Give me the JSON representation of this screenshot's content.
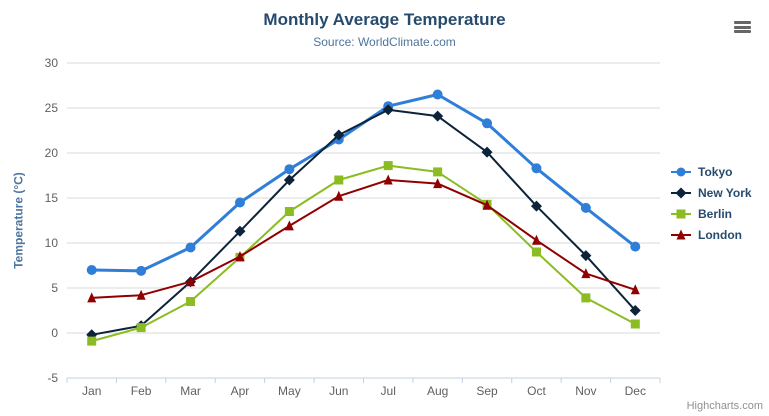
{
  "chart_data": {
    "type": "line",
    "title": "Monthly Average Temperature",
    "subtitle": "Source: WorldClimate.com",
    "xlabel": "",
    "ylabel": "Temperature (°C)",
    "categories": [
      "Jan",
      "Feb",
      "Mar",
      "Apr",
      "May",
      "Jun",
      "Jul",
      "Aug",
      "Sep",
      "Oct",
      "Nov",
      "Dec"
    ],
    "ylim": [
      -5,
      30
    ],
    "yticks": [
      -5,
      0,
      5,
      10,
      15,
      20,
      25,
      30
    ],
    "grid": true,
    "legend_position": "right",
    "series": [
      {
        "name": "Tokyo",
        "color": "#2f7ed8",
        "marker": "circle",
        "highlighted": true,
        "values": [
          7.0,
          6.9,
          9.5,
          14.5,
          18.2,
          21.5,
          25.2,
          26.5,
          23.3,
          18.3,
          13.9,
          9.6
        ]
      },
      {
        "name": "New York",
        "color": "#0d233a",
        "marker": "diamond",
        "highlighted": false,
        "values": [
          -0.2,
          0.8,
          5.7,
          11.3,
          17.0,
          22.0,
          24.8,
          24.1,
          20.1,
          14.1,
          8.6,
          2.5
        ]
      },
      {
        "name": "Berlin",
        "color": "#8bbc21",
        "marker": "square",
        "highlighted": false,
        "values": [
          -0.9,
          0.6,
          3.5,
          8.4,
          13.5,
          17.0,
          18.6,
          17.9,
          14.3,
          9.0,
          3.9,
          1.0
        ]
      },
      {
        "name": "London",
        "color": "#910000",
        "marker": "triangle",
        "highlighted": false,
        "values": [
          3.9,
          4.2,
          5.7,
          8.5,
          11.9,
          15.2,
          17.0,
          16.6,
          14.2,
          10.3,
          6.6,
          4.8
        ]
      }
    ]
  },
  "credit": "Highcharts.com",
  "icons": {
    "menu": "hamburger-icon"
  },
  "colors": {
    "title": "#274b6d",
    "subtitle": "#4d759e",
    "axis_label": "#606060",
    "axis_title": "#4d759e",
    "axis_line": "#c0d0e0",
    "gridline": "#d8d8d8",
    "legend_text": "#274b6d",
    "credit": "#909090",
    "menu_icon": "#666666"
  }
}
